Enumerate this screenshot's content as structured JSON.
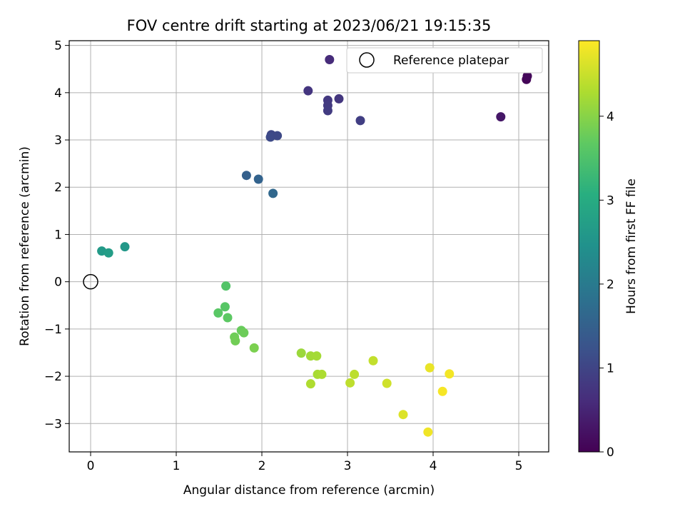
{
  "chart_data": {
    "type": "scatter",
    "title": "FOV centre drift starting at 2023/06/21 19:15:35",
    "xlabel": "Angular distance from reference (arcmin)",
    "ylabel": "Rotation from reference (arcmin)",
    "xlim": [
      -0.25,
      5.35
    ],
    "ylim": [
      -3.6,
      5.1
    ],
    "xticks": [
      0,
      1,
      2,
      3,
      4,
      5
    ],
    "yticks": [
      -3,
      -2,
      -1,
      0,
      1,
      2,
      3,
      4,
      5
    ],
    "grid": true,
    "legend": {
      "position": "top-right",
      "label": "Reference platepar"
    },
    "reference_point": {
      "x": 0,
      "y": 0
    },
    "colorbar": {
      "label": "Hours from first FF file",
      "colormap": "viridis",
      "range": [
        0,
        4.9
      ],
      "ticks": [
        0,
        1,
        2,
        3,
        4
      ]
    },
    "points": [
      {
        "x": 5.09,
        "y": 4.28,
        "hours": 0.05
      },
      {
        "x": 5.1,
        "y": 4.35,
        "hours": 0.1
      },
      {
        "x": 4.79,
        "y": 3.49,
        "hours": 0.3
      },
      {
        "x": 2.79,
        "y": 4.7,
        "hours": 0.6
      },
      {
        "x": 2.54,
        "y": 4.04,
        "hours": 0.75
      },
      {
        "x": 2.77,
        "y": 3.84,
        "hours": 0.8
      },
      {
        "x": 2.77,
        "y": 3.73,
        "hours": 0.82
      },
      {
        "x": 2.77,
        "y": 3.62,
        "hours": 0.85
      },
      {
        "x": 2.9,
        "y": 3.87,
        "hours": 0.78
      },
      {
        "x": 3.15,
        "y": 3.41,
        "hours": 0.9
      },
      {
        "x": 2.11,
        "y": 3.11,
        "hours": 1.05
      },
      {
        "x": 2.1,
        "y": 3.06,
        "hours": 1.1
      },
      {
        "x": 2.18,
        "y": 3.09,
        "hours": 1.08
      },
      {
        "x": 1.82,
        "y": 2.25,
        "hours": 1.5
      },
      {
        "x": 1.96,
        "y": 2.17,
        "hours": 1.55
      },
      {
        "x": 2.13,
        "y": 1.87,
        "hours": 1.65
      },
      {
        "x": 0.13,
        "y": 0.65,
        "hours": 2.65
      },
      {
        "x": 0.21,
        "y": 0.61,
        "hours": 2.7
      },
      {
        "x": 0.4,
        "y": 0.74,
        "hours": 2.6
      },
      {
        "x": 1.58,
        "y": -0.09,
        "hours": 3.55
      },
      {
        "x": 1.57,
        "y": -0.53,
        "hours": 3.6
      },
      {
        "x": 1.49,
        "y": -0.66,
        "hours": 3.62
      },
      {
        "x": 1.6,
        "y": -0.76,
        "hours": 3.65
      },
      {
        "x": 1.76,
        "y": -1.03,
        "hours": 3.75
      },
      {
        "x": 1.79,
        "y": -1.08,
        "hours": 3.78
      },
      {
        "x": 1.68,
        "y": -1.17,
        "hours": 3.8
      },
      {
        "x": 1.69,
        "y": -1.25,
        "hours": 3.82
      },
      {
        "x": 1.91,
        "y": -1.4,
        "hours": 3.9
      },
      {
        "x": 2.46,
        "y": -1.51,
        "hours": 4.15
      },
      {
        "x": 2.57,
        "y": -1.57,
        "hours": 4.2
      },
      {
        "x": 2.64,
        "y": -1.57,
        "hours": 4.22
      },
      {
        "x": 2.65,
        "y": -1.96,
        "hours": 4.25
      },
      {
        "x": 2.7,
        "y": -1.96,
        "hours": 4.28
      },
      {
        "x": 2.57,
        "y": -2.16,
        "hours": 4.3
      },
      {
        "x": 3.08,
        "y": -1.96,
        "hours": 4.4
      },
      {
        "x": 3.03,
        "y": -2.14,
        "hours": 4.42
      },
      {
        "x": 3.3,
        "y": -1.67,
        "hours": 4.45
      },
      {
        "x": 3.46,
        "y": -2.15,
        "hours": 4.55
      },
      {
        "x": 3.65,
        "y": -2.81,
        "hours": 4.65
      },
      {
        "x": 3.96,
        "y": -1.82,
        "hours": 4.75
      },
      {
        "x": 3.94,
        "y": -3.18,
        "hours": 4.8
      },
      {
        "x": 4.19,
        "y": -1.95,
        "hours": 4.82
      },
      {
        "x": 4.11,
        "y": -2.32,
        "hours": 4.85
      }
    ]
  }
}
